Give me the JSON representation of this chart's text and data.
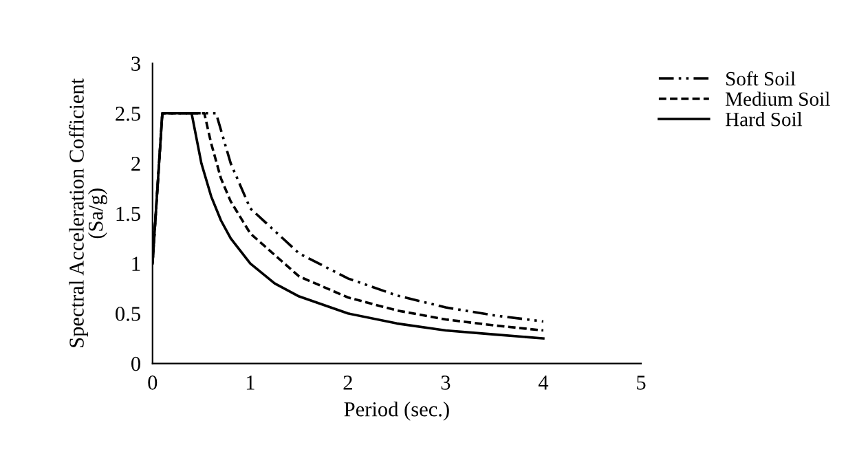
{
  "chart_data": {
    "type": "line",
    "xlabel": "Period (sec.)",
    "ylabel": "Spectral Acceleration Cofficient\n(Sa/g)",
    "xlim": [
      0,
      5
    ],
    "ylim": [
      0,
      3
    ],
    "xticks": [
      0,
      1,
      2,
      3,
      4,
      5
    ],
    "yticks": [
      0,
      0.5,
      1,
      1.5,
      2,
      2.5,
      3
    ],
    "grid": false,
    "legend": "top right",
    "marker": "none",
    "series": [
      {
        "name": "Soft Soil",
        "color": "#000000",
        "line_style": "dashdotdot",
        "x": [
          0,
          0.1,
          0.65,
          0.8,
          1,
          1.5,
          2,
          2.5,
          3,
          3.5,
          4
        ],
        "values": [
          1,
          2.5,
          2.5,
          2.0,
          1.55,
          1.1,
          0.85,
          0.68,
          0.56,
          0.48,
          0.42
        ]
      },
      {
        "name": "Medium Soil",
        "color": "#000000",
        "line_style": "dashed",
        "x": [
          0,
          0.1,
          0.53,
          0.6,
          0.7,
          0.8,
          1,
          1.5,
          2,
          2.5,
          3,
          3.5,
          4
        ],
        "values": [
          1,
          2.5,
          2.5,
          2.2,
          1.85,
          1.62,
          1.3,
          0.87,
          0.66,
          0.53,
          0.44,
          0.38,
          0.33
        ]
      },
      {
        "name": "Hard Soil",
        "color": "#000000",
        "line_style": "solid",
        "x": [
          0,
          0.1,
          0.4,
          0.5,
          0.6,
          0.7,
          0.8,
          1,
          1.25,
          1.5,
          2,
          2.5,
          3,
          3.5,
          4
        ],
        "values": [
          1,
          2.5,
          2.5,
          2.0,
          1.67,
          1.43,
          1.25,
          1.0,
          0.8,
          0.67,
          0.5,
          0.4,
          0.33,
          0.29,
          0.25
        ]
      }
    ]
  }
}
